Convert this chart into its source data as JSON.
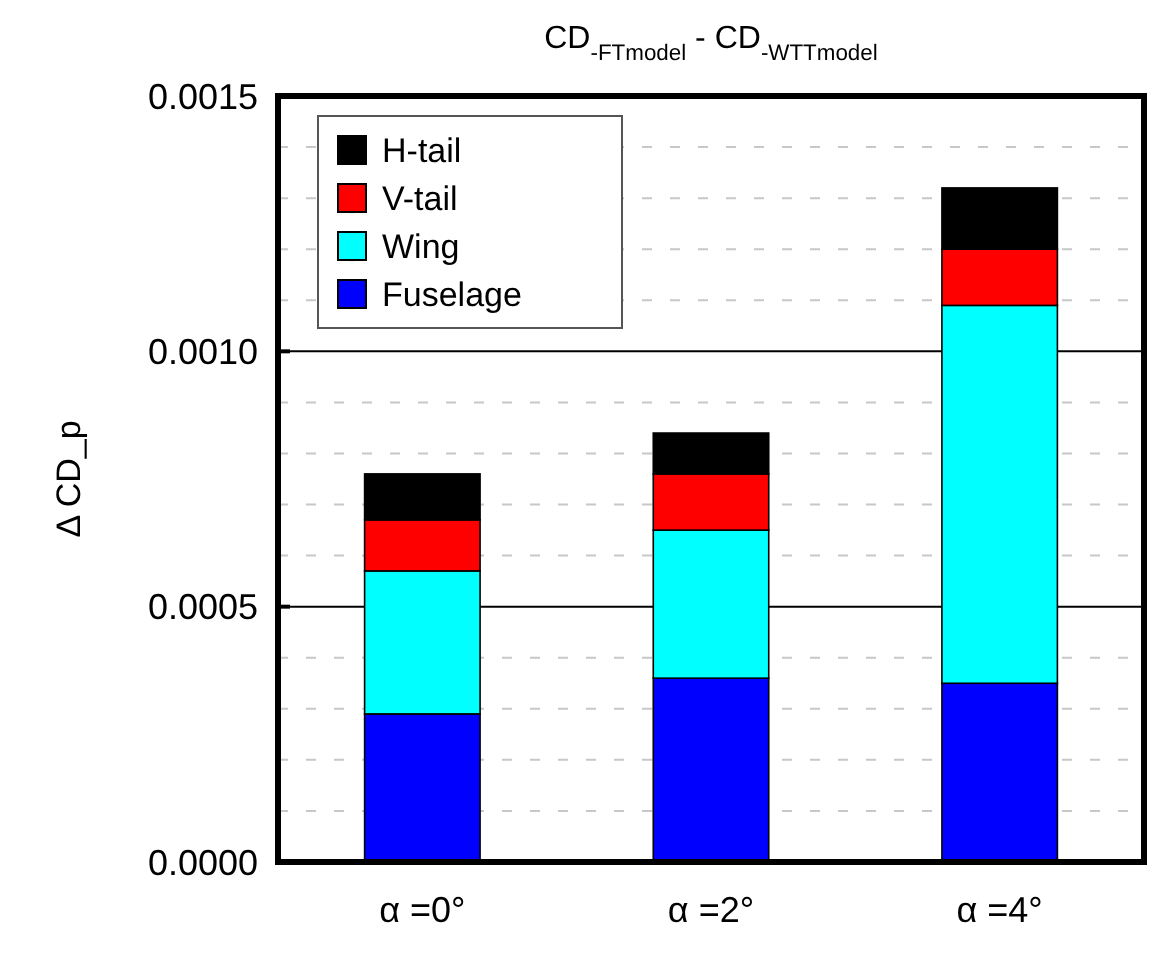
{
  "chart_data": {
    "type": "bar",
    "stacked": true,
    "title": "CD$_{-FTmodel}$ - CD$_{-WTTmodel}$",
    "ylabel": "Δ CD_p",
    "categories": [
      "α =0°",
      "α =2°",
      "α =4°"
    ],
    "series": [
      {
        "name": "Fuselage",
        "color": "#0000ff",
        "values": [
          0.00029,
          0.00036,
          0.00035
        ]
      },
      {
        "name": "Wing",
        "color": "#00ffff",
        "values": [
          0.00028,
          0.00029,
          0.00074
        ]
      },
      {
        "name": "V-tail",
        "color": "#ff0000",
        "values": [
          0.0001,
          0.00011,
          0.00011
        ]
      },
      {
        "name": "H-tail",
        "color": "#000000",
        "values": [
          9e-05,
          8e-05,
          0.00012
        ]
      }
    ],
    "ylim": [
      0,
      0.0015
    ],
    "yticks": [
      "0.0000",
      {
        "value": 0.0001,
        "label": null
      },
      {
        "value": 0.0002,
        "label": null
      },
      {
        "value": 0.0003,
        "label": null
      },
      {
        "value": 0.0004,
        "label": null
      },
      {
        "value": 0.0005,
        "label": "0.0005"
      },
      {
        "value": 0.0006,
        "label": null
      },
      {
        "value": 0.0007,
        "label": null
      },
      {
        "value": 0.0008,
        "label": null
      },
      {
        "value": 0.0009,
        "label": null
      },
      {
        "value": 0.001,
        "label": "0.0010"
      },
      {
        "value": 0.0011,
        "label": null
      },
      {
        "value": 0.0012,
        "label": null
      },
      {
        "value": 0.0013,
        "label": null
      },
      {
        "value": 0.0014,
        "label": null
      },
      {
        "value": 0.0015,
        "label": "0.0015"
      }
    ],
    "grid": "y",
    "legend": "top left"
  }
}
